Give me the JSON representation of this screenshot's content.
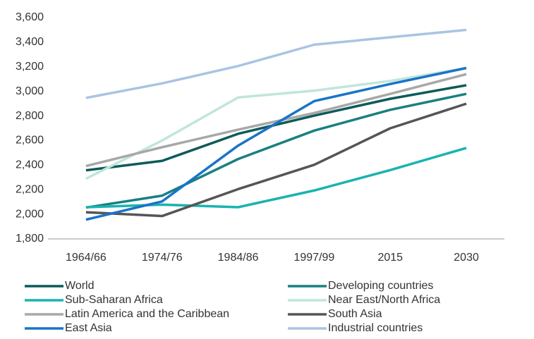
{
  "chart_data": {
    "type": "line",
    "categories": [
      "1964/66",
      "1974/76",
      "1984/86",
      "1997/99",
      "2015",
      "2030"
    ],
    "series": [
      {
        "name": "World",
        "color": "#0f5a5a",
        "values": [
          2358,
          2435,
          2655,
          2803,
          2940,
          3050
        ]
      },
      {
        "name": "Developing countries",
        "color": "#1a8080",
        "values": [
          2055,
          2152,
          2450,
          2681,
          2850,
          2980
        ]
      },
      {
        "name": "Sub-Saharan Africa",
        "color": "#1ab3b0",
        "values": [
          2058,
          2079,
          2058,
          2194,
          2360,
          2540
        ]
      },
      {
        "name": "Near East/North Africa",
        "color": "#bfe6dc",
        "values": [
          2290,
          2600,
          2951,
          3006,
          3085,
          3190
        ]
      },
      {
        "name": "Latin America and the Caribbean",
        "color": "#a8a8a8",
        "values": [
          2393,
          2546,
          2689,
          2824,
          2980,
          3140
        ]
      },
      {
        "name": "South Asia",
        "color": "#555555",
        "values": [
          2017,
          1986,
          2205,
          2403,
          2700,
          2900
        ]
      },
      {
        "name": "East Asia",
        "color": "#1a73c8",
        "values": [
          1957,
          2105,
          2559,
          2921,
          3060,
          3190
        ]
      },
      {
        "name": "Industrial countries",
        "color": "#a9c4e4",
        "values": [
          2947,
          3065,
          3206,
          3380,
          3440,
          3500
        ]
      }
    ],
    "ylim": [
      1800,
      3600
    ],
    "yticks": [
      {
        "value": 1800,
        "label": "1,800"
      },
      {
        "value": 2000,
        "label": "2,000"
      },
      {
        "value": 2200,
        "label": "2,200"
      },
      {
        "value": 2400,
        "label": "2,400"
      },
      {
        "value": 2600,
        "label": "2,600"
      },
      {
        "value": 2800,
        "label": "2,800"
      },
      {
        "value": 3000,
        "label": "3,000"
      },
      {
        "value": 3200,
        "label": "3,200"
      },
      {
        "value": 3400,
        "label": "3,400"
      },
      {
        "value": 3600,
        "label": "3,600"
      }
    ],
    "grid": false,
    "legend": "bottom"
  }
}
